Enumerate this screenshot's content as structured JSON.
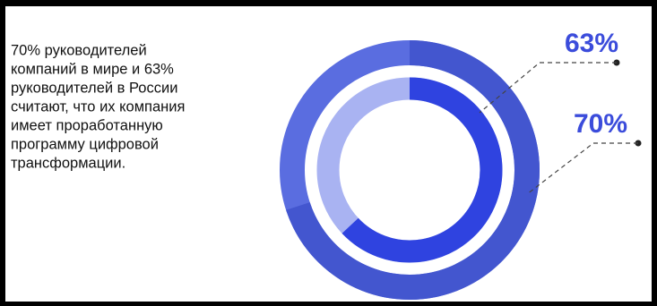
{
  "chart_data": {
    "type": "donut",
    "text_lines": [
      "70% руководителей",
      "компаний в мире и 63%",
      "руководителей в России",
      "считают, что их компания",
      "имеет проработанную",
      "программу цифровой",
      "трансформации."
    ],
    "values": [
      70,
      63
    ],
    "value_labels": [
      "70%",
      "63%"
    ],
    "colors": [
      "#4356cf",
      "#2f43e0"
    ],
    "rest_colors": [
      "#5a6de0",
      "#a9b3f2"
    ],
    "label_color": "#3b4cdb"
  }
}
